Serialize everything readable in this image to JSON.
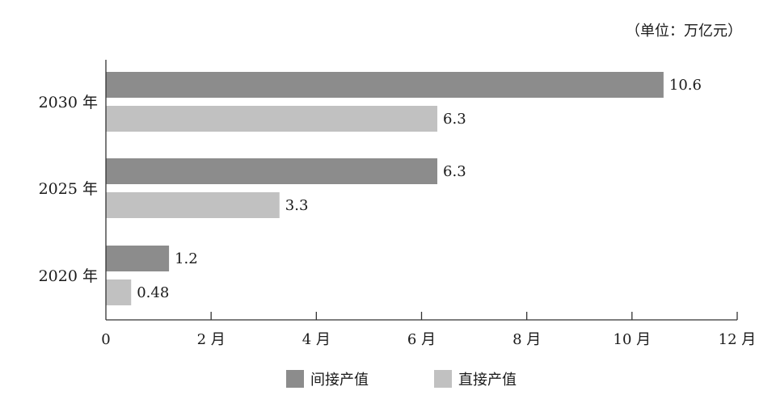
{
  "chart_data": {
    "type": "bar",
    "orientation": "horizontal",
    "unit_note": "（单位：万亿元）",
    "categories": [
      "2030 年",
      "2025 年",
      "2020 年"
    ],
    "series": [
      {
        "name": "间接产值",
        "values": [
          10.6,
          6.3,
          1.2
        ],
        "labels": [
          "10.6",
          "6.3",
          "1.2"
        ],
        "color": "#8c8c8c"
      },
      {
        "name": "直接产值",
        "values": [
          6.3,
          3.3,
          0.48
        ],
        "labels": [
          "6.3",
          "3.3",
          "0.48"
        ],
        "color": "#c1c1c1"
      }
    ],
    "xlim": [
      0,
      12
    ],
    "x_ticks": [
      {
        "value": 0,
        "label": "0"
      },
      {
        "value": 2,
        "label": "2 月"
      },
      {
        "value": 4,
        "label": "4 月"
      },
      {
        "value": 6,
        "label": "6 月"
      },
      {
        "value": 8,
        "label": "8 月"
      },
      {
        "value": 10,
        "label": "10 月"
      },
      {
        "value": 12,
        "label": "12 月"
      }
    ],
    "grid": false,
    "legend_position": "bottom-center"
  }
}
